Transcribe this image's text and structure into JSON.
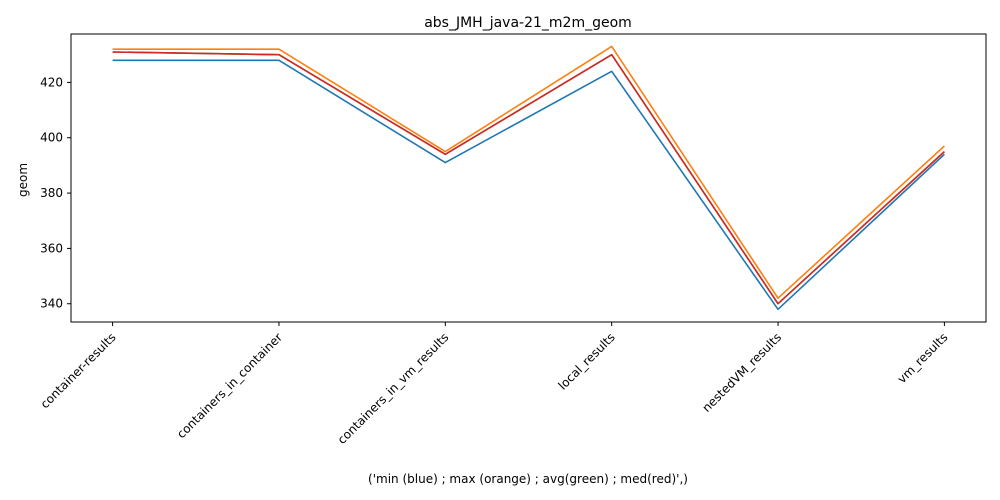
{
  "chart_data": {
    "type": "line",
    "title": "abs_JMH_java-21_m2m_geom",
    "xlabel": "('min (blue) ; max (orange) ; avg(green) ; med(red)',)",
    "ylabel": "geom",
    "categories": [
      "container-results",
      "containers_in_container",
      "containers_in_vm_results",
      "local_results",
      "nestedVM_results",
      "vm_results"
    ],
    "ylim": [
      333.4,
      437.5
    ],
    "yticks": [
      340,
      360,
      380,
      400,
      420
    ],
    "grid": false,
    "series": [
      {
        "color": "#1f77b4",
        "values": [
          428,
          428,
          391,
          424,
          338,
          394
        ]
      },
      {
        "color": "#2ca02c",
        "values": [
          431,
          430,
          394,
          430,
          340,
          395
        ]
      },
      {
        "color": "#d62728",
        "values": [
          431,
          430,
          394,
          430,
          340,
          395
        ]
      },
      {
        "color": "#ff7f0e",
        "values": [
          432,
          432,
          395,
          433,
          342,
          397
        ]
      }
    ]
  }
}
